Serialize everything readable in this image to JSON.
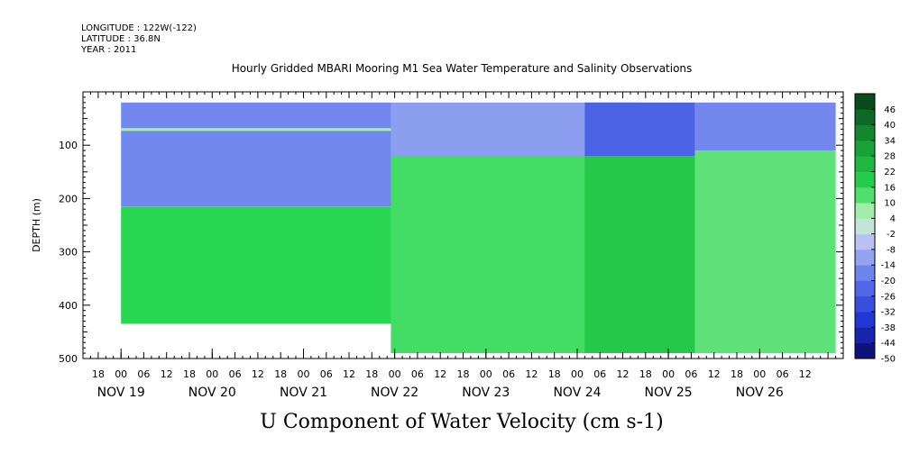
{
  "meta": {
    "longitude": "LONGITUDE : 122W(-122)",
    "latitude": "LATITUDE : 36.8N",
    "year": "YEAR : 2011"
  },
  "chart_data": {
    "type": "heatmap",
    "title": "Hourly Gridded MBARI Mooring M1 Sea Water Temperature and Salinity Observations",
    "xlabel": "U Component of Water Velocity (cm s-1)",
    "ylabel": "DEPTH (m)",
    "y_axis": {
      "range": [
        0,
        500
      ],
      "reversed": true,
      "ticks": [
        100,
        200,
        300,
        400,
        500
      ],
      "tick_labels": [
        "100",
        "200",
        "300",
        "400",
        "500"
      ]
    },
    "x_axis": {
      "unit": "hour of 2011-11",
      "range": [
        "2011-11-18 14:00",
        "2011-11-26 22:00"
      ],
      "hour_tick_labels": [
        "18",
        "00",
        "06",
        "12",
        "18",
        "00",
        "06",
        "12",
        "18",
        "00",
        "06",
        "12",
        "18",
        "00",
        "06",
        "12",
        "18",
        "00",
        "06",
        "12",
        "18",
        "00",
        "06",
        "12",
        "18",
        "00",
        "06",
        "12",
        "18",
        "00",
        "06",
        "12"
      ],
      "hour_tick_times": [
        "2011-11-18 18:00",
        "2011-11-19 00:00",
        "2011-11-19 06:00",
        "2011-11-19 12:00",
        "2011-11-19 18:00",
        "2011-11-20 00:00",
        "2011-11-20 06:00",
        "2011-11-20 12:00",
        "2011-11-20 18:00",
        "2011-11-21 00:00",
        "2011-11-21 06:00",
        "2011-11-21 12:00",
        "2011-11-21 18:00",
        "2011-11-22 00:00",
        "2011-11-22 06:00",
        "2011-11-22 12:00",
        "2011-11-22 18:00",
        "2011-11-23 00:00",
        "2011-11-23 06:00",
        "2011-11-23 12:00",
        "2011-11-23 18:00",
        "2011-11-24 00:00",
        "2011-11-24 06:00",
        "2011-11-24 12:00",
        "2011-11-24 18:00",
        "2011-11-25 00:00",
        "2011-11-25 06:00",
        "2011-11-25 12:00",
        "2011-11-25 18:00",
        "2011-11-26 00:00",
        "2011-11-26 06:00",
        "2011-11-26 12:00"
      ],
      "date_labels": [
        {
          "label": "NOV 19",
          "time": "2011-11-19 00:00"
        },
        {
          "label": "NOV 20",
          "time": "2011-11-20 00:00"
        },
        {
          "label": "NOV 21",
          "time": "2011-11-21 00:00"
        },
        {
          "label": "NOV 22",
          "time": "2011-11-22 00:00"
        },
        {
          "label": "NOV 23",
          "time": "2011-11-23 00:00"
        },
        {
          "label": "NOV 24",
          "time": "2011-11-24 00:00"
        },
        {
          "label": "NOV 25",
          "time": "2011-11-25 00:00"
        },
        {
          "label": "NOV 26",
          "time": "2011-11-26 00:00"
        }
      ]
    },
    "colorbar": {
      "labels": [
        "46",
        "40",
        "34",
        "28",
        "22",
        "16",
        "10",
        "4",
        "-2",
        "-8",
        "-14",
        "-20",
        "-26",
        "-32",
        "-38",
        "-44",
        "-50"
      ],
      "min": -50,
      "max": 52,
      "step": 6
    },
    "regions": [
      {
        "t0": "2011-11-19 00:00",
        "t1": "2011-11-21 23:00",
        "d0": 20,
        "d1": 215,
        "value": -16
      },
      {
        "t0": "2011-11-19 00:00",
        "t1": "2011-11-21 23:00",
        "d0": 68,
        "d1": 73,
        "value": 6
      },
      {
        "t0": "2011-11-19 00:00",
        "t1": "2011-11-21 23:00",
        "d0": 215,
        "d1": 435,
        "value": 16
      },
      {
        "t0": "2011-11-21 23:00",
        "t1": "2011-11-24 17:00",
        "d0": 20,
        "d1": 120,
        "value": -12
      },
      {
        "t0": "2011-11-21 23:00",
        "t1": "2011-11-24 17:00",
        "d0": 120,
        "d1": 490,
        "value": 14
      },
      {
        "t0": "2011-11-24 02:00",
        "t1": "2011-11-25 07:00",
        "d0": 20,
        "d1": 120,
        "value": -24
      },
      {
        "t0": "2011-11-24 02:00",
        "t1": "2011-11-25 07:00",
        "d0": 120,
        "d1": 490,
        "value": 20
      },
      {
        "t0": "2011-11-25 07:00",
        "t1": "2011-11-26 20:00",
        "d0": 20,
        "d1": 110,
        "value": -16
      },
      {
        "t0": "2011-11-25 07:00",
        "t1": "2011-11-26 20:00",
        "d0": 110,
        "d1": 490,
        "value": 12
      }
    ]
  }
}
